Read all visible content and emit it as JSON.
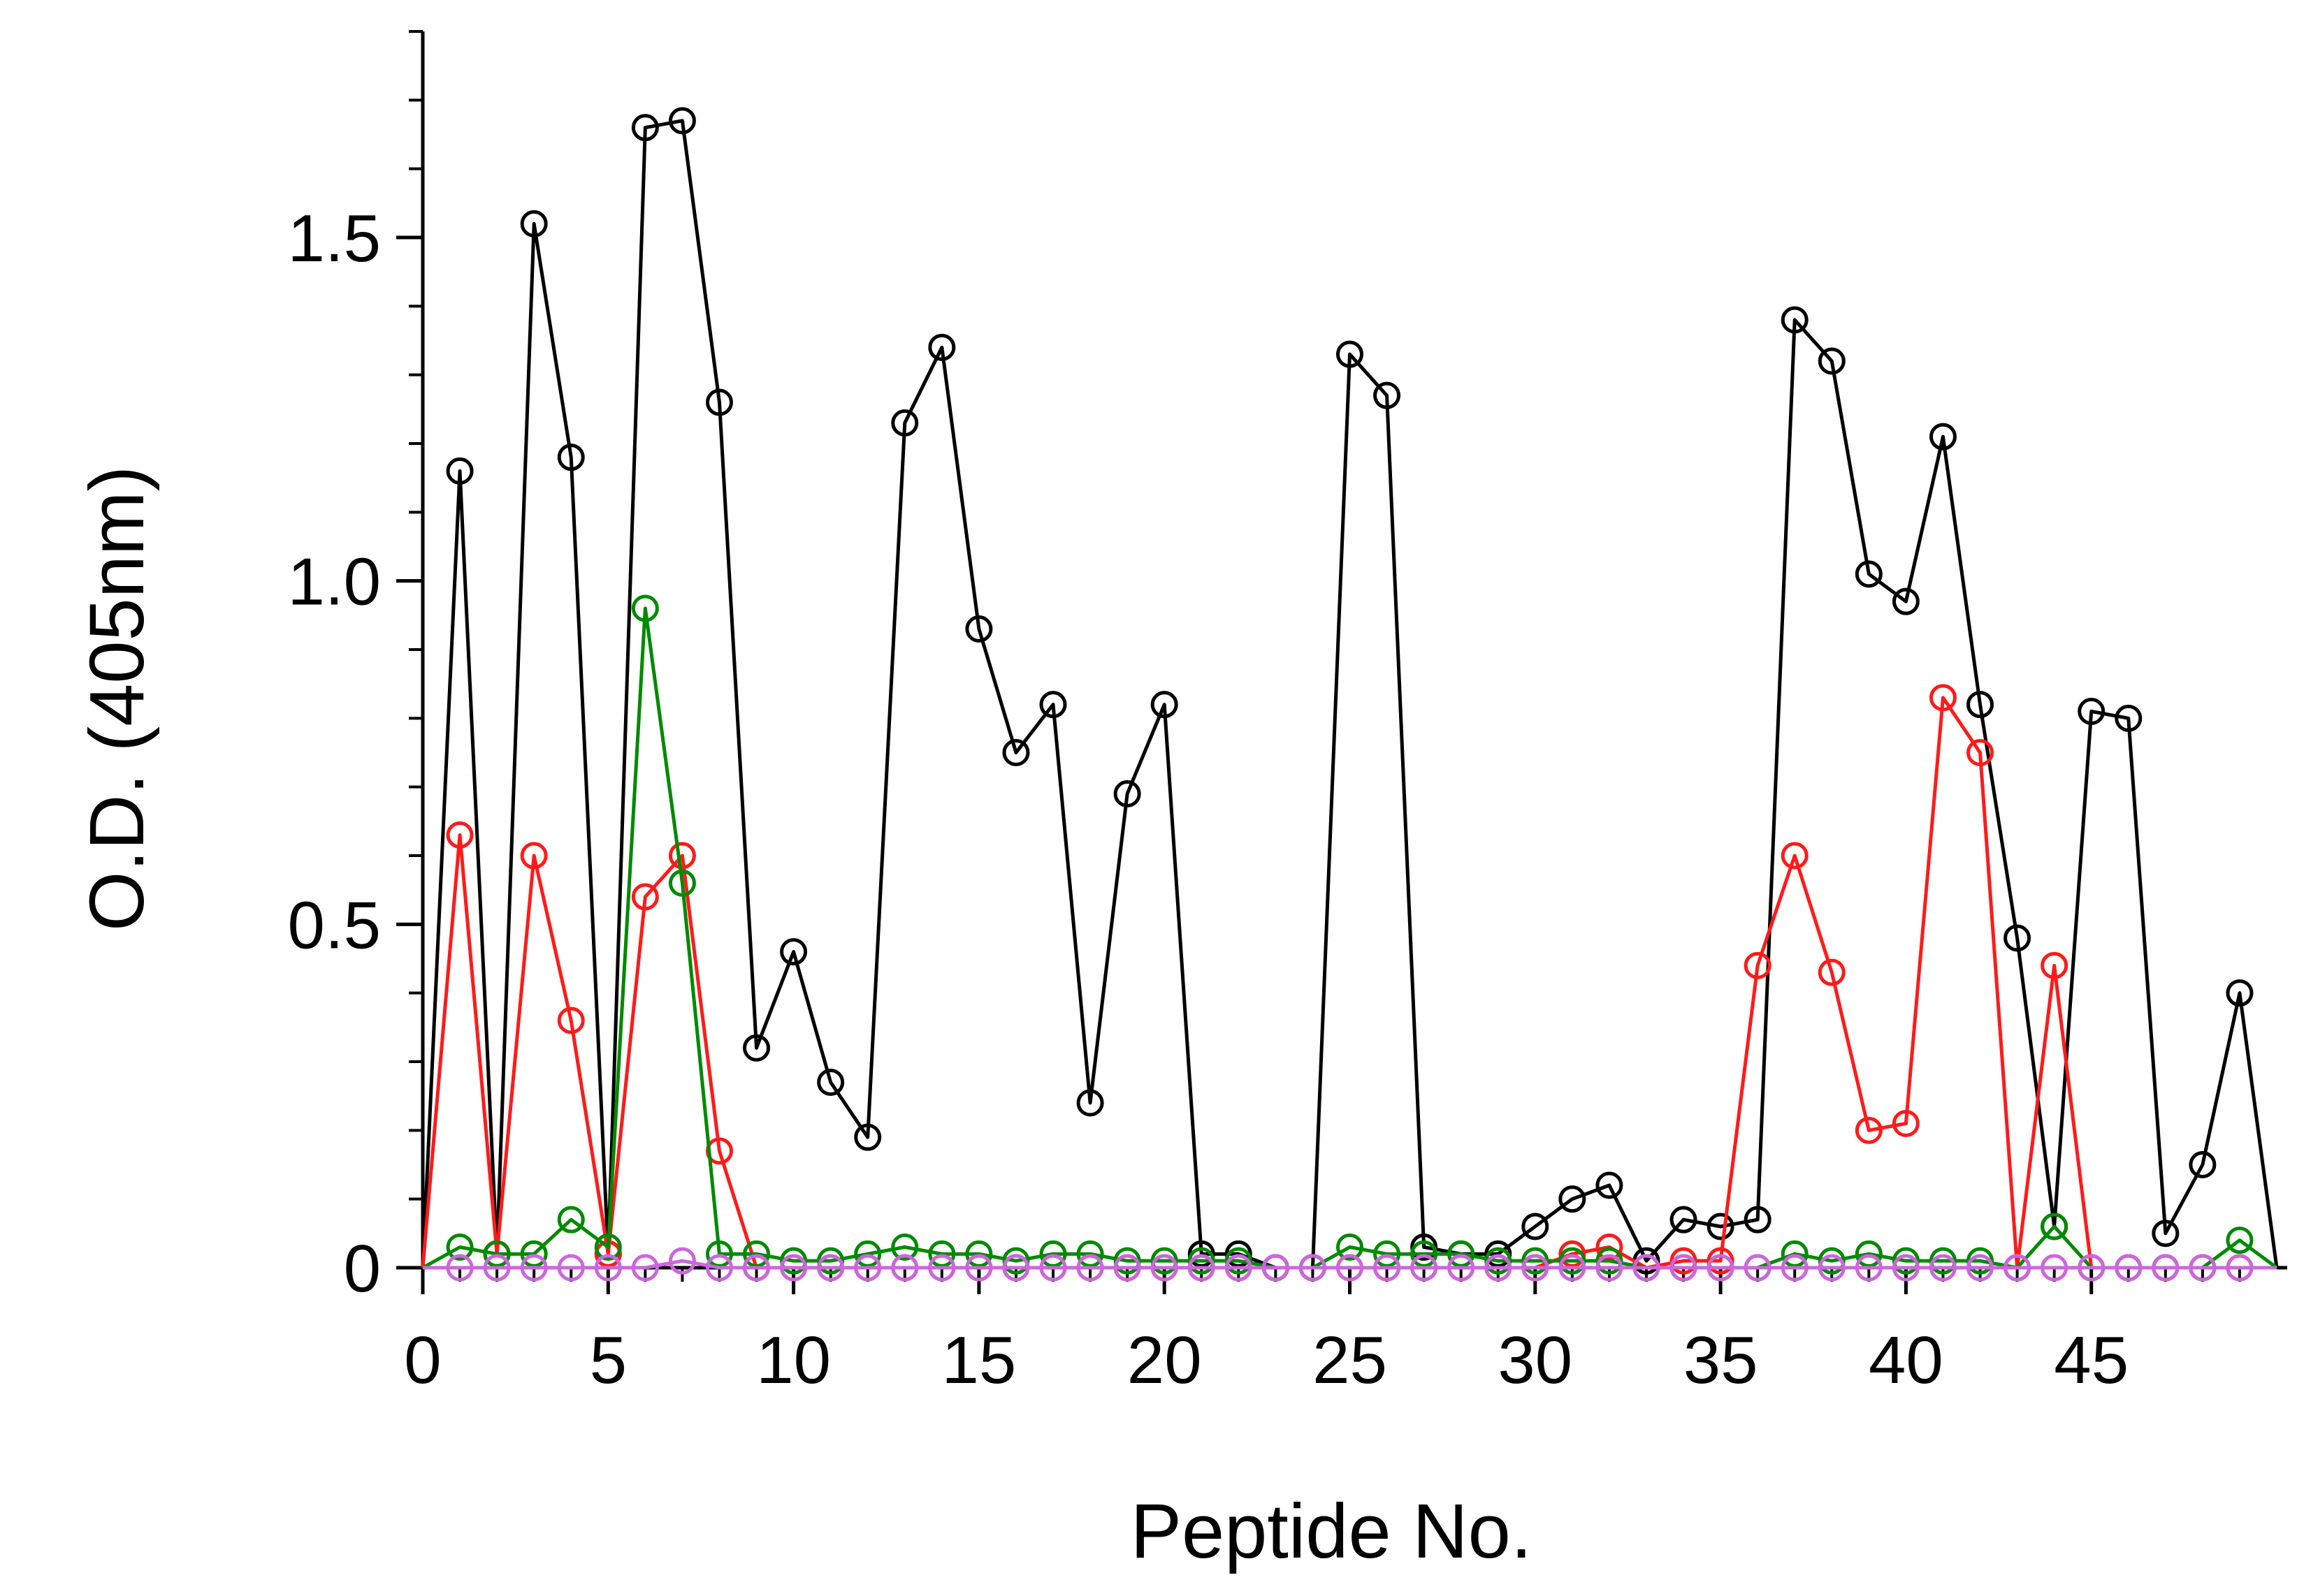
{
  "chart_data": {
    "type": "line",
    "title": "",
    "xlabel": "Peptide No.",
    "ylabel": "O.D. (405nm)",
    "xlim": [
      0,
      50
    ],
    "ylim": [
      0,
      1.8
    ],
    "x_ticks": [
      0,
      5,
      10,
      15,
      20,
      25,
      30,
      35,
      40,
      45
    ],
    "x_tick_labels": [
      "0",
      "5",
      "10",
      "15",
      "20",
      "25",
      "30",
      "35",
      "40",
      "45"
    ],
    "y_ticks": [
      0,
      0.5,
      1.0,
      1.5
    ],
    "y_tick_labels": [
      "0",
      "0.5",
      "1.0",
      "1.5"
    ],
    "grid": false,
    "legend": "none",
    "x": [
      1,
      2,
      3,
      4,
      5,
      6,
      7,
      8,
      9,
      10,
      11,
      12,
      13,
      14,
      15,
      16,
      17,
      18,
      19,
      20,
      21,
      22,
      23,
      24,
      25,
      26,
      27,
      28,
      29,
      30,
      31,
      32,
      33,
      34,
      35,
      36,
      37,
      38,
      39,
      40,
      41,
      42,
      43,
      44,
      45,
      46,
      47,
      48,
      49
    ],
    "series": [
      {
        "name": "black",
        "color": "#000000",
        "values": [
          1.16,
          0.02,
          1.52,
          1.18,
          0.02,
          1.66,
          1.67,
          1.26,
          0.32,
          0.46,
          0.27,
          0.19,
          1.23,
          1.34,
          0.93,
          0.75,
          0.82,
          0.24,
          0.69,
          0.82,
          0.02,
          0.02,
          0.0,
          0.0,
          1.33,
          1.27,
          0.03,
          0.02,
          0.02,
          0.06,
          0.1,
          0.12,
          0.01,
          0.07,
          0.06,
          0.07,
          1.38,
          1.32,
          1.01,
          0.97,
          1.21,
          0.82,
          0.48,
          0.06,
          0.81,
          0.8,
          0.05,
          0.15,
          0.4
        ]
      },
      {
        "name": "red",
        "color": "#ff1a1a",
        "values": [
          0.63,
          0.02,
          0.6,
          0.36,
          0.02,
          0.54,
          0.6,
          0.17,
          0.0,
          0.0,
          0.0,
          0.0,
          0.0,
          0.0,
          0.0,
          0.0,
          0.0,
          0.0,
          0.0,
          0.0,
          0.0,
          0.0,
          0.0,
          0.0,
          0.0,
          0.0,
          0.0,
          0.0,
          0.0,
          0.0,
          0.02,
          0.03,
          0.0,
          0.01,
          0.01,
          0.44,
          0.6,
          0.43,
          0.2,
          0.21,
          0.83,
          0.75,
          0.0,
          0.44,
          0.0,
          0.0,
          0.0,
          0.0,
          0.0
        ]
      },
      {
        "name": "green",
        "color": "#008a00",
        "values": [
          0.03,
          0.02,
          0.02,
          0.07,
          0.03,
          0.96,
          0.56,
          0.02,
          0.02,
          0.01,
          0.01,
          0.02,
          0.03,
          0.02,
          0.02,
          0.01,
          0.02,
          0.02,
          0.01,
          0.01,
          0.01,
          0.01,
          0.0,
          0.0,
          0.03,
          0.02,
          0.02,
          0.02,
          0.01,
          0.01,
          0.01,
          0.01,
          0.0,
          0.0,
          0.0,
          0.0,
          0.02,
          0.01,
          0.02,
          0.01,
          0.01,
          0.01,
          0.0,
          0.06,
          0.0,
          0.0,
          0.0,
          0.0,
          0.04
        ]
      },
      {
        "name": "violet",
        "color": "#cc66dd",
        "values": [
          0.0,
          0.0,
          0.0,
          0.0,
          0.0,
          0.0,
          0.01,
          0.0,
          0.0,
          0.0,
          0.0,
          0.0,
          0.0,
          0.0,
          0.0,
          0.0,
          0.0,
          0.0,
          0.0,
          0.0,
          0.0,
          0.0,
          0.0,
          0.0,
          0.0,
          0.0,
          0.0,
          0.0,
          0.0,
          0.0,
          0.0,
          0.0,
          0.0,
          0.0,
          0.0,
          0.0,
          0.0,
          0.0,
          0.0,
          0.0,
          0.0,
          0.0,
          0.0,
          0.0,
          0.0,
          0.0,
          0.0,
          0.0,
          0.0
        ]
      }
    ]
  }
}
